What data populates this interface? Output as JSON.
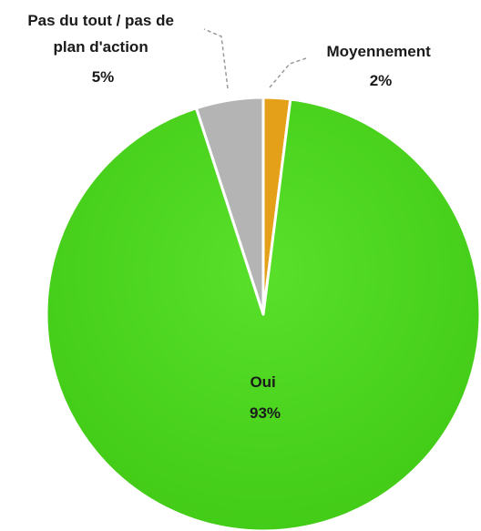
{
  "chart_data": {
    "type": "pie",
    "slices": [
      {
        "label": "Moyennement",
        "label_lines": [
          "Moyennement"
        ],
        "value": 2,
        "value_label": "2%",
        "color": "#E3A018"
      },
      {
        "label": "Oui",
        "label_lines": [
          "Oui"
        ],
        "value": 93,
        "value_label": "93%",
        "color": "#4FD91F"
      },
      {
        "label": "Pas du tout / pas de plan d'action",
        "label_lines": [
          "Pas du tout / pas de",
          "plan d'action"
        ],
        "value": 5,
        "value_label": "5%",
        "color": "#B4B4B4"
      }
    ],
    "start_angle_deg": 0,
    "direction": "clockwise",
    "legend": "none",
    "title": ""
  }
}
